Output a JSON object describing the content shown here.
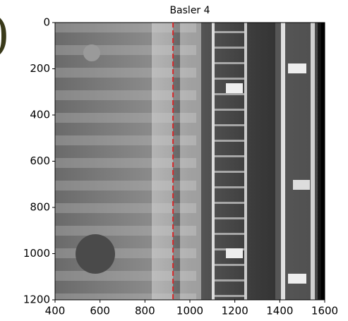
{
  "chart_data": {
    "type": "image",
    "title": "Basler 4",
    "xlim": [
      400,
      1600
    ],
    "xticks": [
      400,
      600,
      800,
      1000,
      1200,
      1400,
      1600
    ],
    "ylim": [
      1200,
      0
    ],
    "yticks": [
      0,
      200,
      400,
      600,
      800,
      1000,
      1200
    ],
    "vlines": [
      {
        "x": 925,
        "color": "#d62728",
        "style": "dashed"
      }
    ]
  },
  "cropped_text": ")"
}
